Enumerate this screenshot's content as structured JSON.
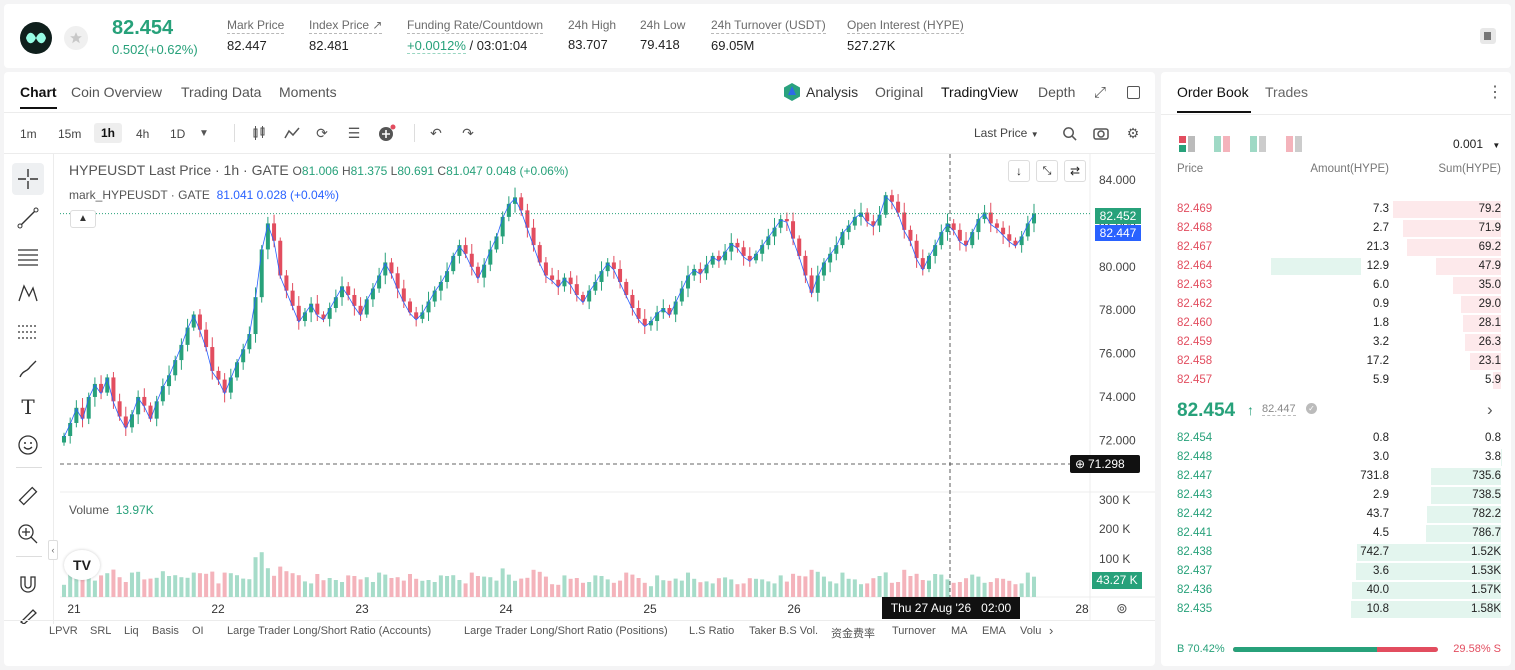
{
  "ticker": {
    "last_price": "82.454",
    "change": "0.502(+0.62%)",
    "stats": [
      {
        "label": "Mark Price",
        "value": "82.447"
      },
      {
        "label": "Index Price",
        "value": "82.481"
      },
      {
        "label": "Funding Rate/Countdown",
        "value_green": "+0.0012%",
        "value_rest": "/ 03:01:04"
      },
      {
        "label": "24h High",
        "value": "83.707"
      },
      {
        "label": "24h Low",
        "value": "79.418"
      },
      {
        "label": "24h Turnover (USDT)",
        "value": "69.05M"
      },
      {
        "label": "Open Interest (HYPE)",
        "value": "527.27K"
      }
    ]
  },
  "chart_tabs": [
    "Chart",
    "Coin Overview",
    "Trading Data",
    "Moments"
  ],
  "chart_modes": {
    "analysis": "Analysis",
    "original": "Original",
    "tradingview": "TradingView",
    "depth": "Depth"
  },
  "timeframes": [
    "1m",
    "15m",
    "1h",
    "4h",
    "1D"
  ],
  "price_type": "Last Price",
  "legend": {
    "title": "HYPEUSDT Last Price · 1h · GATE",
    "o_label": "O",
    "o": "81.006",
    "h_label": "H",
    "h": "81.375",
    "l_label": "L",
    "l": "80.691",
    "c_label": "C",
    "c": "81.047",
    "chg": "0.048 (+0.06%)",
    "mark_label": "mark_HYPEUSDT · GATE",
    "mark_val": "81.041",
    "mark_chg": "0.028 (+0.04%)"
  },
  "volume_legend": {
    "label": "Volume",
    "value": "13.97K"
  },
  "price_axis": [
    "84.000",
    "82.000",
    "80.000",
    "78.000",
    "76.000",
    "74.000",
    "72.000"
  ],
  "price_tags": {
    "last": "82.452",
    "mark": "82.447",
    "cursor": "71.298"
  },
  "volume_axis": [
    "300 K",
    "200 K",
    "100 K"
  ],
  "volume_tag": "43.27 K",
  "time_axis": [
    "21",
    "22",
    "23",
    "24",
    "25",
    "26",
    "28"
  ],
  "cursor_time": "Thu 27 Aug '26   02:00",
  "indicators": [
    "LPVR",
    "SRL",
    "Liq",
    "Basis",
    "OI",
    "Large Trader Long/Short Ratio (Accounts)",
    "Large Trader Long/Short Ratio (Positions)",
    "L.S Ratio",
    "Taker B.S Vol.",
    "资金费率",
    "Turnover",
    "MA",
    "EMA",
    "Volu"
  ],
  "orderbook": {
    "tabs": [
      "Order Book",
      "Trades"
    ],
    "precision": "0.001",
    "headers": {
      "price": "Price",
      "amount": "Amount(HYPE)",
      "sum": "Sum(HYPE)"
    },
    "asks": [
      {
        "price": "82.469",
        "amount": "7.3",
        "sum": "79.2"
      },
      {
        "price": "82.468",
        "amount": "2.7",
        "sum": "71.9"
      },
      {
        "price": "82.467",
        "amount": "21.3",
        "sum": "69.2"
      },
      {
        "price": "82.464",
        "amount": "12.9",
        "sum": "47.9"
      },
      {
        "price": "82.463",
        "amount": "6.0",
        "sum": "35.0"
      },
      {
        "price": "82.462",
        "amount": "0.9",
        "sum": "29.0"
      },
      {
        "price": "82.460",
        "amount": "1.8",
        "sum": "28.1"
      },
      {
        "price": "82.459",
        "amount": "3.2",
        "sum": "26.3"
      },
      {
        "price": "82.458",
        "amount": "17.2",
        "sum": "23.1"
      },
      {
        "price": "82.457",
        "amount": "5.9",
        "sum": "5.9"
      }
    ],
    "mid": {
      "price": "82.454",
      "mark": "82.447"
    },
    "bids": [
      {
        "price": "82.454",
        "amount": "0.8",
        "sum": "0.8"
      },
      {
        "price": "82.448",
        "amount": "3.0",
        "sum": "3.8"
      },
      {
        "price": "82.447",
        "amount": "731.8",
        "sum": "735.6"
      },
      {
        "price": "82.443",
        "amount": "2.9",
        "sum": "738.5"
      },
      {
        "price": "82.442",
        "amount": "43.7",
        "sum": "782.2"
      },
      {
        "price": "82.441",
        "amount": "4.5",
        "sum": "786.7"
      },
      {
        "price": "82.438",
        "amount": "742.7",
        "sum": "1.52K"
      },
      {
        "price": "82.437",
        "amount": "3.6",
        "sum": "1.53K"
      },
      {
        "price": "82.436",
        "amount": "40.0",
        "sum": "1.57K"
      },
      {
        "price": "82.435",
        "amount": "10.8",
        "sum": "1.58K"
      }
    ],
    "buy_ratio": "B 70.42%",
    "sell_ratio": "29.58% S",
    "buy_pct": 70.42
  },
  "colors": {
    "up": "#27a17a",
    "down": "#e24d5f",
    "mark": "#2962ff"
  },
  "chart_data": {
    "type": "candlestick",
    "symbol": "HYPEUSDT",
    "interval": "1h",
    "ylim": [
      71,
      84.6
    ],
    "x_ticks": [
      "21",
      "22",
      "23",
      "24",
      "25",
      "26",
      "28"
    ],
    "closes": [
      72.2,
      72.8,
      73.5,
      73.0,
      74.0,
      74.6,
      74.2,
      74.9,
      73.8,
      73.1,
      72.6,
      73.2,
      74.0,
      73.6,
      73.0,
      73.8,
      74.5,
      75.0,
      75.7,
      76.4,
      77.2,
      77.8,
      77.1,
      76.3,
      75.2,
      74.8,
      74.2,
      74.9,
      75.6,
      76.2,
      76.9,
      78.6,
      80.8,
      82.0,
      81.2,
      79.6,
      78.9,
      78.2,
      77.5,
      77.9,
      78.3,
      77.8,
      77.6,
      78.1,
      78.6,
      79.1,
      78.7,
      78.2,
      77.8,
      78.5,
      79.0,
      79.6,
      80.2,
      79.7,
      79.0,
      78.4,
      77.9,
      77.6,
      77.9,
      78.4,
      78.9,
      79.3,
      79.8,
      80.5,
      81.0,
      80.6,
      80.0,
      79.5,
      80.1,
      80.8,
      81.4,
      82.3,
      82.9,
      83.2,
      82.6,
      81.8,
      81.0,
      80.2,
      79.6,
      79.4,
      79.1,
      79.5,
      79.2,
      78.7,
      78.4,
      78.9,
      79.3,
      79.8,
      80.2,
      79.9,
      79.3,
      78.7,
      78.1,
      77.6,
      77.3,
      77.5,
      77.9,
      78.1,
      77.8,
      78.4,
      79.0,
      79.6,
      79.9,
      79.7,
      80.1,
      80.5,
      80.3,
      80.7,
      81.1,
      80.9,
      80.5,
      80.3,
      80.6,
      81.0,
      81.4,
      81.8,
      82.2,
      82.1,
      81.3,
      80.5,
      79.6,
      78.8,
      79.6,
      80.2,
      80.6,
      81.0,
      81.6,
      81.9,
      82.3,
      82.5,
      82.1,
      81.9,
      82.4,
      83.3,
      83.0,
      82.5,
      81.7,
      81.2,
      80.4,
      79.9,
      80.5,
      81.0,
      81.6,
      82.0,
      81.7,
      81.2,
      81.0,
      81.6,
      82.2,
      82.5,
      82.0,
      81.8,
      81.5,
      81.2,
      81.0,
      81.4,
      82.0,
      82.452
    ]
  }
}
